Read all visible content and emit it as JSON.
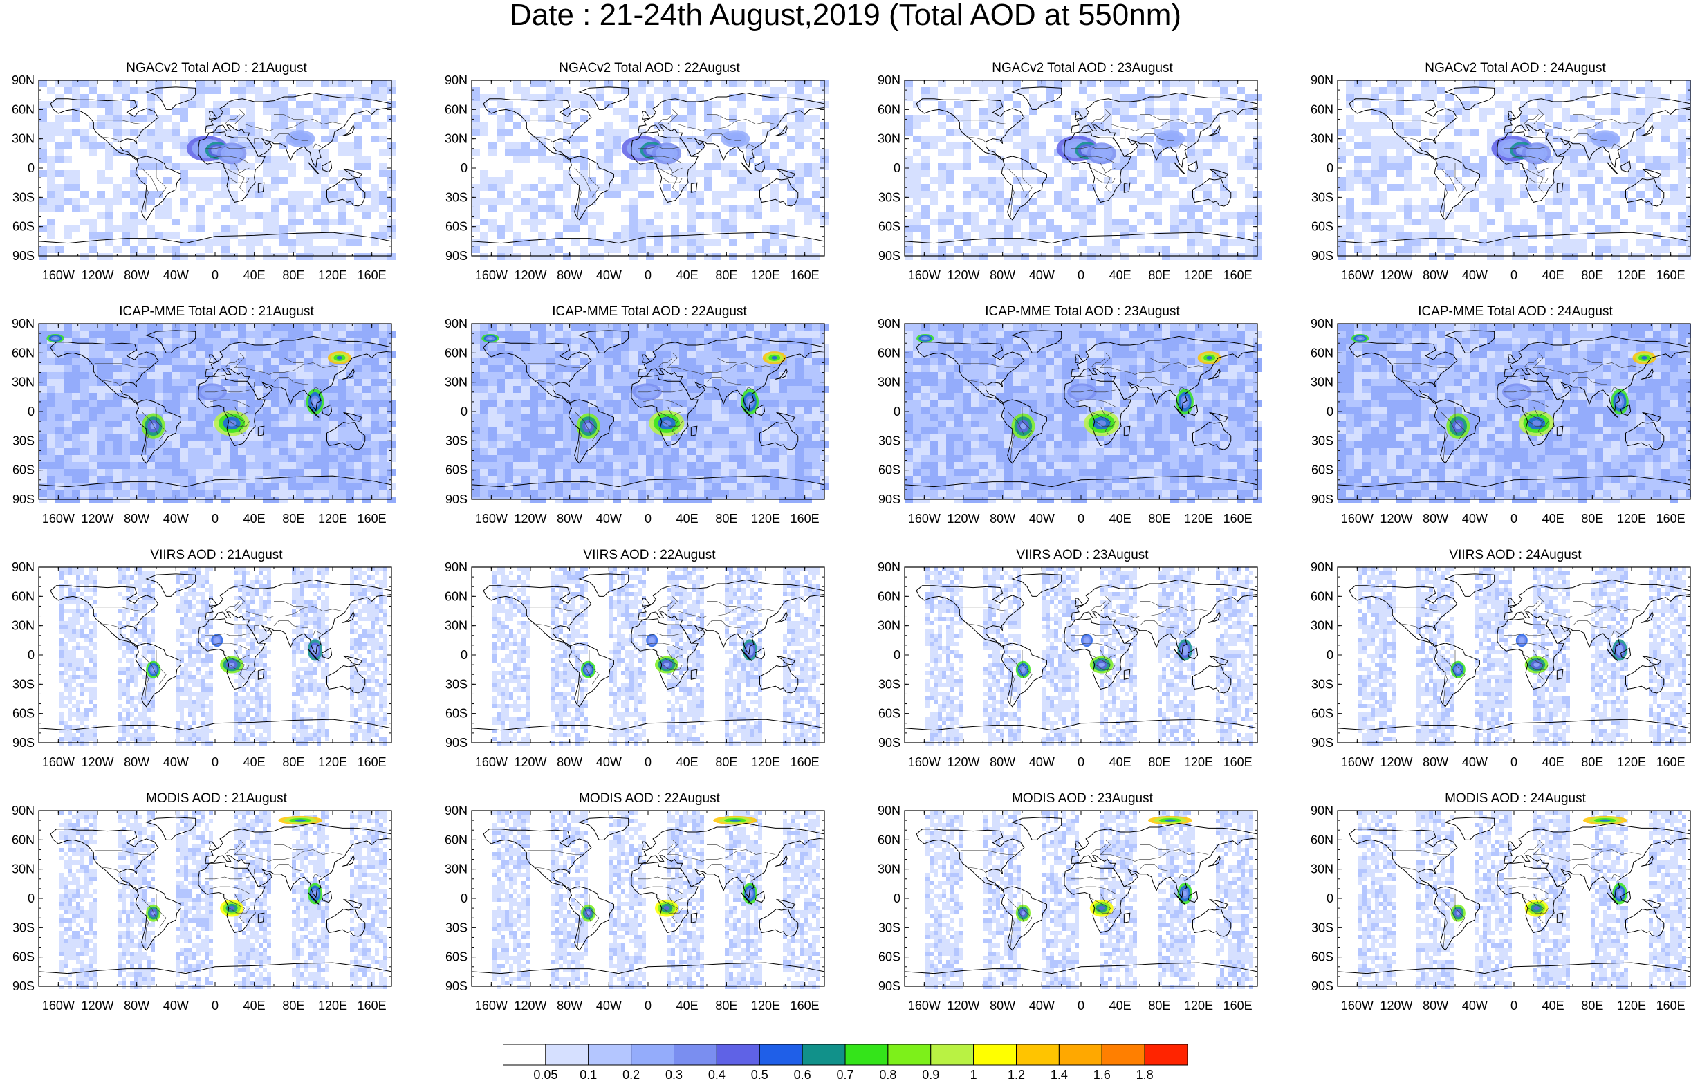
{
  "title": "Date : 21-24th August,2019 (Total AOD at 550nm)",
  "rows": [
    {
      "product": "NGACv2",
      "titles": [
        "NGACv2 Total AOD : 21August",
        "NGACv2 Total AOD : 22August",
        "NGACv2 Total AOD : 23August",
        "NGACv2 Total AOD : 24August"
      ]
    },
    {
      "product": "ICAP-MME",
      "titles": [
        "ICAP-MME Total AOD : 21August",
        "ICAP-MME Total AOD : 22August",
        "ICAP-MME Total AOD : 23August",
        "ICAP-MME Total AOD : 24August"
      ]
    },
    {
      "product": "VIIRS",
      "titles": [
        "VIIRS AOD : 21August",
        "VIIRS AOD : 22August",
        "VIIRS AOD : 23August",
        "VIIRS AOD : 24August"
      ]
    },
    {
      "product": "MODIS",
      "titles": [
        "MODIS AOD : 21August",
        "MODIS AOD : 22August",
        "MODIS AOD : 23August",
        "MODIS AOD : 24August"
      ]
    }
  ],
  "lat_labels": [
    "90N",
    "60N",
    "30N",
    "0",
    "30S",
    "60S",
    "90S"
  ],
  "lon_labels": [
    "160W",
    "120W",
    "80W",
    "40W",
    "0",
    "40E",
    "80E",
    "120E",
    "160E"
  ],
  "colorbar": {
    "labels": [
      "0.05",
      "0.1",
      "0.2",
      "0.3",
      "0.4",
      "0.5",
      "0.6",
      "0.7",
      "0.8",
      "0.9",
      "1",
      "1.2",
      "1.4",
      "1.6",
      "1.8"
    ],
    "colors": [
      "#ffffff",
      "#d6e0ff",
      "#b4c6ff",
      "#94acfb",
      "#7a8ef0",
      "#5f62e6",
      "#1f5fe8",
      "#11918a",
      "#34e41a",
      "#7df01a",
      "#b9f243",
      "#ffff00",
      "#ffc400",
      "#ffa800",
      "#ff7f00",
      "#ff2400"
    ]
  }
}
